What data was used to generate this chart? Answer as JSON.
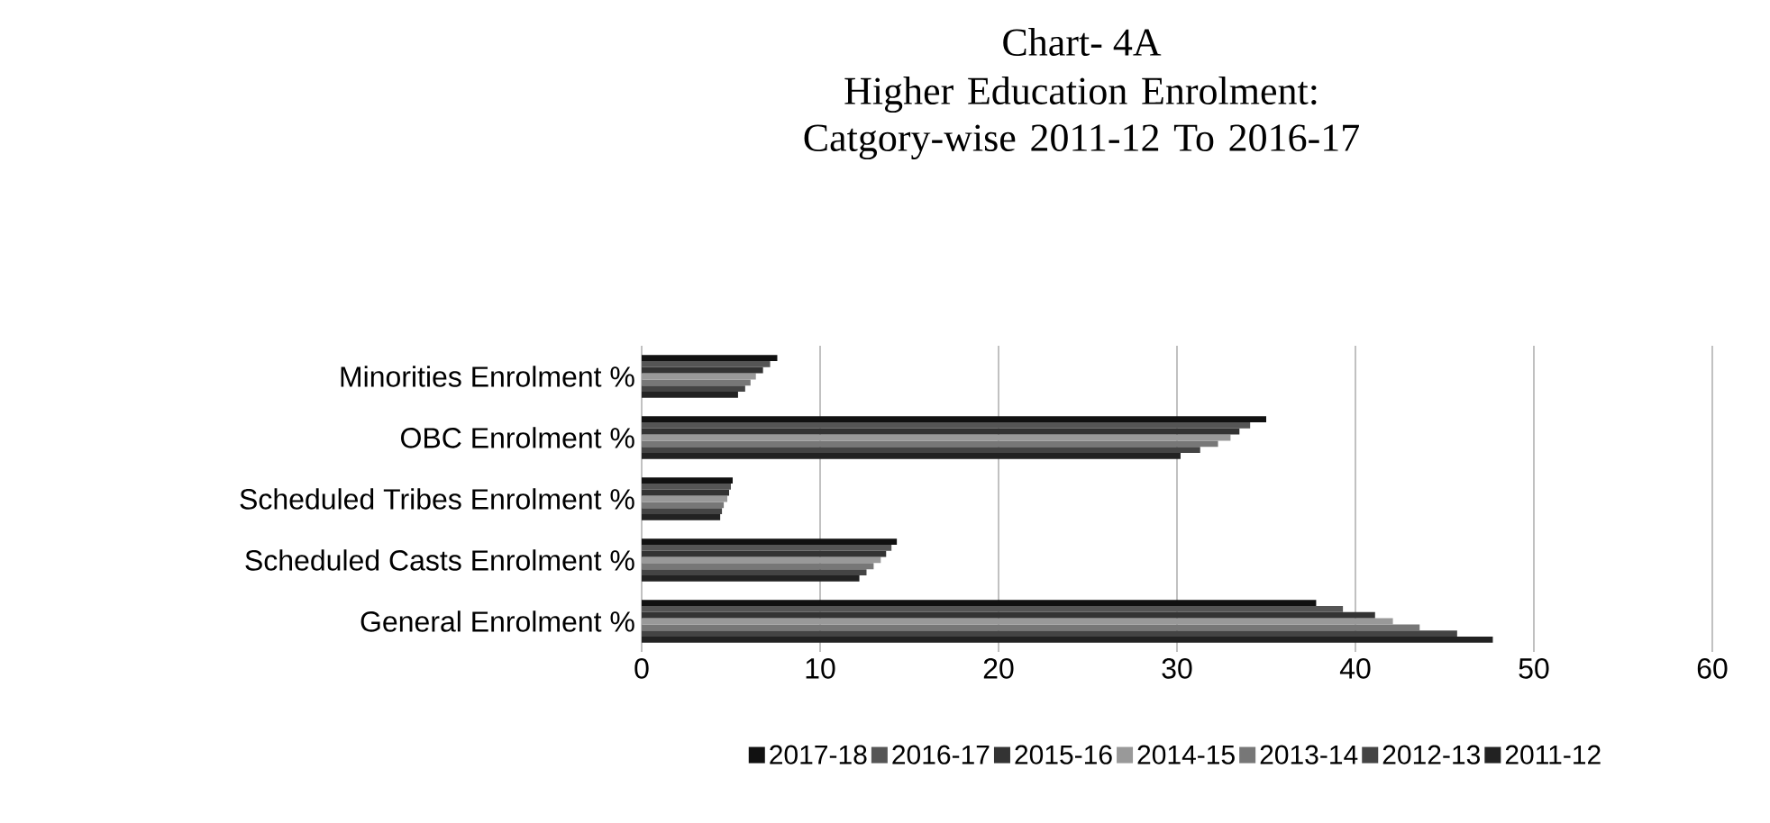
{
  "chart_data": {
    "type": "bar",
    "orientation": "horizontal",
    "title": "Chart- 4A",
    "subtitle": "Higher Education Enrolment: Catgory-wise 2011-12 To 2016-17",
    "categories": [
      "Minorities Enrolment %",
      "OBC Enrolment %",
      "Scheduled Tribes Enrolment %",
      "Scheduled Casts Enrolment %",
      "General Enrolment %"
    ],
    "series": [
      {
        "name": "2011-12",
        "color": "#222222",
        "values": [
          5.4,
          30.2,
          4.4,
          12.2,
          47.7
        ]
      },
      {
        "name": "2012-13",
        "color": "#444444",
        "values": [
          5.8,
          31.3,
          4.5,
          12.6,
          45.7
        ]
      },
      {
        "name": "2013-14",
        "color": "#777777",
        "values": [
          6.1,
          32.3,
          4.6,
          13.0,
          43.6
        ]
      },
      {
        "name": "2014-15",
        "color": "#999999",
        "values": [
          6.4,
          33.0,
          4.8,
          13.4,
          42.1
        ]
      },
      {
        "name": "2015-16",
        "color": "#333333",
        "values": [
          6.8,
          33.5,
          4.9,
          13.7,
          41.1
        ]
      },
      {
        "name": "2016-17",
        "color": "#555555",
        "values": [
          7.2,
          34.1,
          5.0,
          14.0,
          39.3
        ]
      },
      {
        "name": "2017-18",
        "color": "#111111",
        "values": [
          7.6,
          35.0,
          5.1,
          14.3,
          37.8
        ]
      }
    ],
    "xlim": [
      0,
      60
    ],
    "xticks": [
      0,
      10,
      20,
      30,
      40,
      50,
      60
    ],
    "grid": "x",
    "legend": "bottom"
  }
}
